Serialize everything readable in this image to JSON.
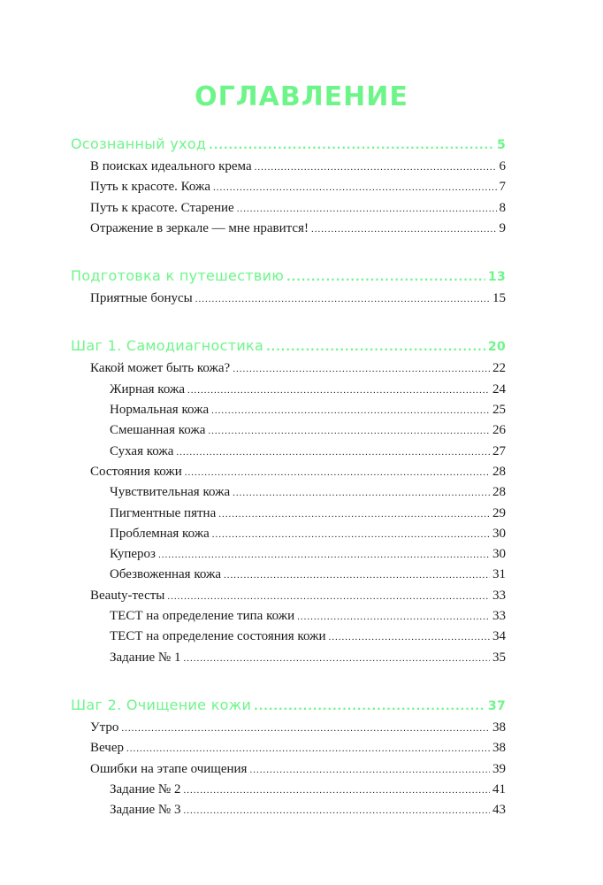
{
  "title": "ОГЛАВЛЕНИЕ",
  "accent_color": "#6ef58a",
  "groups": [
    {
      "heading": {
        "label": "Осознанный уход",
        "page": "5"
      },
      "items": [
        {
          "label": "В поисках идеального крема",
          "page": "6",
          "level": 1
        },
        {
          "label": "Путь к красоте. Кожа",
          "page": "7",
          "level": 1
        },
        {
          "label": "Путь к красоте. Старение",
          "page": "8",
          "level": 1
        },
        {
          "label": "Отражение в зеркале — мне нравится!",
          "page": "9",
          "level": 1
        }
      ]
    },
    {
      "heading": {
        "label": "Подготовка к путешествию",
        "page": "13"
      },
      "items": [
        {
          "label": "Приятные бонусы",
          "page": "15",
          "level": 1
        }
      ]
    },
    {
      "heading": {
        "label": "Шаг 1. Самодиагностика",
        "page": "20"
      },
      "items": [
        {
          "label": "Какой может быть кожа?",
          "page": "22",
          "level": 1
        },
        {
          "label": "Жирная кожа",
          "page": "24",
          "level": 2
        },
        {
          "label": "Нормальная кожа",
          "page": "25",
          "level": 2
        },
        {
          "label": "Смешанная кожа",
          "page": "26",
          "level": 2
        },
        {
          "label": "Сухая кожа",
          "page": "27",
          "level": 2
        },
        {
          "label": "Состояния кожи",
          "page": "28",
          "level": 1
        },
        {
          "label": "Чувствительная кожа",
          "page": "28",
          "level": 2
        },
        {
          "label": "Пигментные пятна",
          "page": "29",
          "level": 2
        },
        {
          "label": "Проблемная кожа",
          "page": "30",
          "level": 2
        },
        {
          "label": "Купероз",
          "page": "30",
          "level": 2
        },
        {
          "label": "Обезвоженная кожа",
          "page": "31",
          "level": 2
        },
        {
          "label": "Beauty-тесты",
          "page": "33",
          "level": 1
        },
        {
          "label": "ТЕСТ на определение типа кожи",
          "page": "33",
          "level": 2
        },
        {
          "label": "ТЕСТ на определение состояния кожи",
          "page": "34",
          "level": 2
        },
        {
          "label": "Задание № 1",
          "page": "35",
          "level": 2
        }
      ]
    },
    {
      "heading": {
        "label": "Шаг 2. Очищение кожи",
        "page": "37"
      },
      "items": [
        {
          "label": "Утро",
          "page": "38",
          "level": 1
        },
        {
          "label": "Вечер",
          "page": "38",
          "level": 1
        },
        {
          "label": "Ошибки на этапе очищения",
          "page": "39",
          "level": 1
        },
        {
          "label": "Задание № 2",
          "page": "41",
          "level": 2
        },
        {
          "label": "Задание № 3",
          "page": "43",
          "level": 2
        }
      ]
    }
  ]
}
